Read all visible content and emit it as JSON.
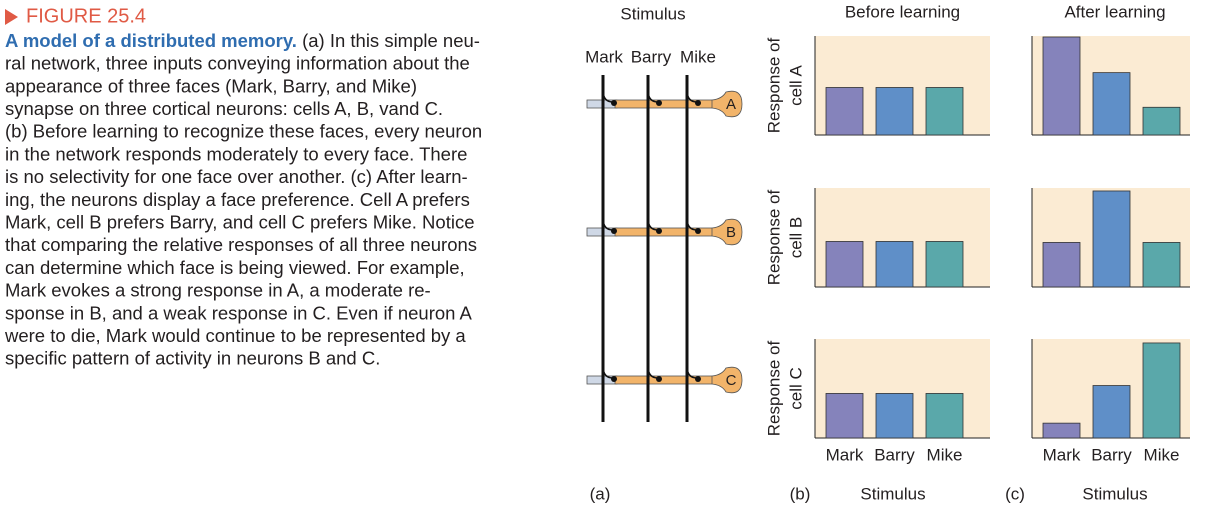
{
  "figure_label": "FIGURE 25.4",
  "caption": {
    "title": "A model of a distributed memory.",
    "lines": [
      " (a) In this simple neu-",
      "ral network, three inputs conveying information about the",
      "appearance of three faces (Mark, Barry, and Mike)",
      "synapse on three cortical neurons: cells A, B, vand C.",
      "(b) Before learning to recognize these faces, every neuron",
      "in the network responds moderately to every face. There",
      "is no selectivity for one face over another. (c) After learn-",
      "ing, the neurons display a face preference. Cell A prefers",
      "Mark, cell B prefers Barry, and cell C prefers Mike. Notice",
      "that comparing the relative responses of all three neurons",
      "can determine which face is being viewed. For example,",
      "Mark evokes a strong response in A, a moderate re-",
      "sponse in B, and a weak response in C. Even if neuron A",
      "were to die, Mark would continue to be represented by a",
      "specific pattern of activity in neurons B and C."
    ]
  },
  "panel_a": {
    "label": "(a)",
    "title": "Stimulus",
    "inputs": [
      "Mark",
      "Barry",
      "Mike"
    ],
    "cells": [
      "A",
      "B",
      "C"
    ]
  },
  "ylabels": [
    [
      "Response of",
      "cell A"
    ],
    [
      "Response of",
      "cell B"
    ],
    [
      "Response of",
      "cell C"
    ]
  ],
  "chart_data": [
    {
      "type": "bar",
      "title": "Before learning",
      "label": "(b)",
      "xlabel": "Stimulus",
      "categories": [
        "Mark",
        "Barry",
        "Mike"
      ],
      "colors": [
        "#8583bb",
        "#5f8fc8",
        "#5aa8aa"
      ],
      "ylim": [
        0,
        100
      ],
      "panels": [
        {
          "values": [
            48,
            48,
            48
          ]
        },
        {
          "values": [
            46,
            46,
            46
          ]
        },
        {
          "values": [
            45,
            45,
            45
          ]
        }
      ]
    },
    {
      "type": "bar",
      "title": "After learning",
      "label": "(c)",
      "xlabel": "Stimulus",
      "categories": [
        "Mark",
        "Barry",
        "Mike"
      ],
      "colors": [
        "#8583bb",
        "#5f8fc8",
        "#5aa8aa"
      ],
      "ylim": [
        0,
        100
      ],
      "panels": [
        {
          "values": [
            99,
            63,
            28
          ]
        },
        {
          "values": [
            45,
            97,
            45
          ]
        },
        {
          "values": [
            15,
            53,
            96
          ]
        }
      ]
    }
  ]
}
